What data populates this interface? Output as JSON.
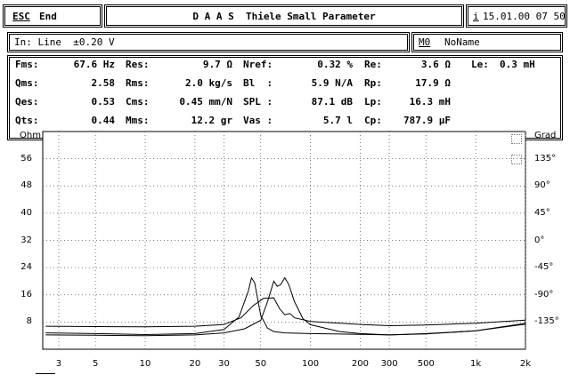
{
  "topbar": {
    "esc_key": "ESC",
    "end_label": "End",
    "title": "D A A S  Thiele Small Parameter",
    "info_key": "i",
    "datetime": "15.01.00 07 50"
  },
  "infobar": {
    "input": "In: Line  ±0.20 V",
    "memory_key": "M0",
    "memory_name": "NoName"
  },
  "params": {
    "rows": [
      [
        {
          "label": "Fms:",
          "value": "67.6 Hz"
        },
        {
          "label": "Res:",
          "value": "9.7 Ω"
        },
        {
          "label": "Nref:",
          "value": "0.32 %"
        },
        {
          "label": "Re:",
          "value": "3.6 Ω"
        },
        {
          "label": "Le:",
          "value": "0.3 mH"
        }
      ],
      [
        {
          "label": "Qms:",
          "value": "2.58"
        },
        {
          "label": "Rms:",
          "value": "2.0 kg/s"
        },
        {
          "label": "Bl  :",
          "value": "5.9 N/A"
        },
        {
          "label": "Rp:",
          "value": "17.9 Ω"
        }
      ],
      [
        {
          "label": "Qes:",
          "value": "0.53"
        },
        {
          "label": "Cms:",
          "value": "0.45 mm/N"
        },
        {
          "label": "SPL :",
          "value": "87.1 dB"
        },
        {
          "label": "Lp:",
          "value": "16.3 mH"
        }
      ],
      [
        {
          "label": "Qts:",
          "value": "0.44"
        },
        {
          "label": "Mms:",
          "value": "12.2 gr"
        },
        {
          "label": "Vas :",
          "value": "5.7 l"
        },
        {
          "label": "Cp:",
          "value": "787.9 µF"
        }
      ]
    ]
  },
  "chart_data": {
    "type": "line",
    "xscale": "log",
    "xlim": [
      2.4,
      2000
    ],
    "x_ticks": [
      {
        "v": 3,
        "label": "3"
      },
      {
        "v": 5,
        "label": "5"
      },
      {
        "v": 10,
        "label": "10"
      },
      {
        "v": 20,
        "label": "20"
      },
      {
        "v": 30,
        "label": "30"
      },
      {
        "v": 50,
        "label": "50"
      },
      {
        "v": 100,
        "label": "100"
      },
      {
        "v": 200,
        "label": "200"
      },
      {
        "v": 300,
        "label": "300"
      },
      {
        "v": 500,
        "label": "500"
      },
      {
        "v": 1000,
        "label": "1k"
      },
      {
        "v": 2000,
        "label": "2k"
      }
    ],
    "y_left": {
      "label": "Ohm",
      "lim": [
        0,
        64
      ],
      "ticks": [
        8,
        16,
        24,
        32,
        40,
        48,
        56
      ]
    },
    "y_right": {
      "label": "Grad",
      "lim": [
        -180,
        180
      ],
      "ticks": [
        {
          "v": 135,
          "label": "135°"
        },
        {
          "v": 90,
          "label": "90°"
        },
        {
          "v": 45,
          "label": "45°"
        },
        {
          "v": 0,
          "label": "0°"
        },
        {
          "v": -45,
          "label": "-45°"
        },
        {
          "v": -90,
          "label": "-90°"
        },
        {
          "v": -135,
          "label": "-135°"
        }
      ]
    },
    "grid": true,
    "series": [
      {
        "axis": "left",
        "points": [
          [
            2.5,
            4.8
          ],
          [
            5,
            4.6
          ],
          [
            10,
            4.3
          ],
          [
            20,
            4.6
          ],
          [
            30,
            5.8
          ],
          [
            37,
            9.5
          ],
          [
            42,
            17
          ],
          [
            44,
            21
          ],
          [
            46,
            19.5
          ],
          [
            50,
            10
          ],
          [
            55,
            6.2
          ],
          [
            60,
            5.2
          ],
          [
            70,
            4.8
          ],
          [
            100,
            4.6
          ],
          [
            200,
            4.4
          ],
          [
            300,
            4.2
          ],
          [
            500,
            4.6
          ],
          [
            1000,
            5.4
          ],
          [
            2000,
            7.4
          ]
        ]
      },
      {
        "axis": "left",
        "points": [
          [
            2.5,
            4.2
          ],
          [
            5,
            4.1
          ],
          [
            10,
            4.0
          ],
          [
            20,
            4.2
          ],
          [
            30,
            4.8
          ],
          [
            40,
            6.0
          ],
          [
            50,
            8.5
          ],
          [
            55,
            14
          ],
          [
            60,
            20
          ],
          [
            63,
            18.5
          ],
          [
            66,
            19
          ],
          [
            70,
            21
          ],
          [
            74,
            19
          ],
          [
            80,
            14
          ],
          [
            90,
            9
          ],
          [
            100,
            7.2
          ],
          [
            150,
            5.2
          ],
          [
            200,
            4.6
          ],
          [
            300,
            4.2
          ],
          [
            500,
            4.5
          ],
          [
            1000,
            5.4
          ],
          [
            2000,
            7.6
          ]
        ]
      },
      {
        "axis": "right",
        "points": [
          [
            2.5,
            -142
          ],
          [
            10,
            -143
          ],
          [
            20,
            -142
          ],
          [
            30,
            -139
          ],
          [
            38,
            -128
          ],
          [
            45,
            -108
          ],
          [
            52,
            -96
          ],
          [
            60,
            -95
          ],
          [
            65,
            -113
          ],
          [
            70,
            -123
          ],
          [
            75,
            -121
          ],
          [
            80,
            -128
          ],
          [
            100,
            -134
          ],
          [
            200,
            -139
          ],
          [
            300,
            -141
          ],
          [
            500,
            -140
          ],
          [
            1000,
            -137
          ],
          [
            2000,
            -132
          ]
        ]
      }
    ]
  }
}
